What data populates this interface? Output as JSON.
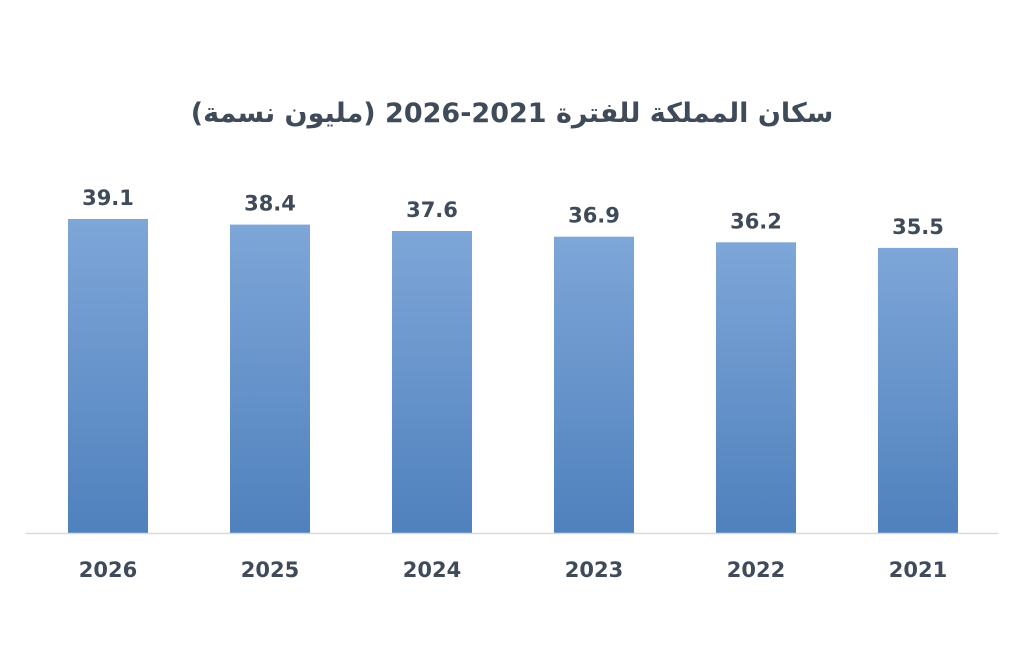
{
  "chart_data": {
    "type": "bar",
    "title": "سكان المملكة للفترة 2021-2026 (مليون نسمة)",
    "categories": [
      "2026",
      "2025",
      "2024",
      "2023",
      "2022",
      "2021"
    ],
    "values": [
      39.1,
      38.4,
      37.6,
      36.9,
      36.2,
      35.5
    ],
    "xlabel": "",
    "ylabel": "",
    "ylim": [
      0,
      39.1
    ],
    "grid": false,
    "legend": "none",
    "bar_color_top": "#7ea6d8",
    "bar_color_bottom": "#4f81bd",
    "axis_color": "#d9d9d9",
    "text_color": "#404b5a"
  }
}
